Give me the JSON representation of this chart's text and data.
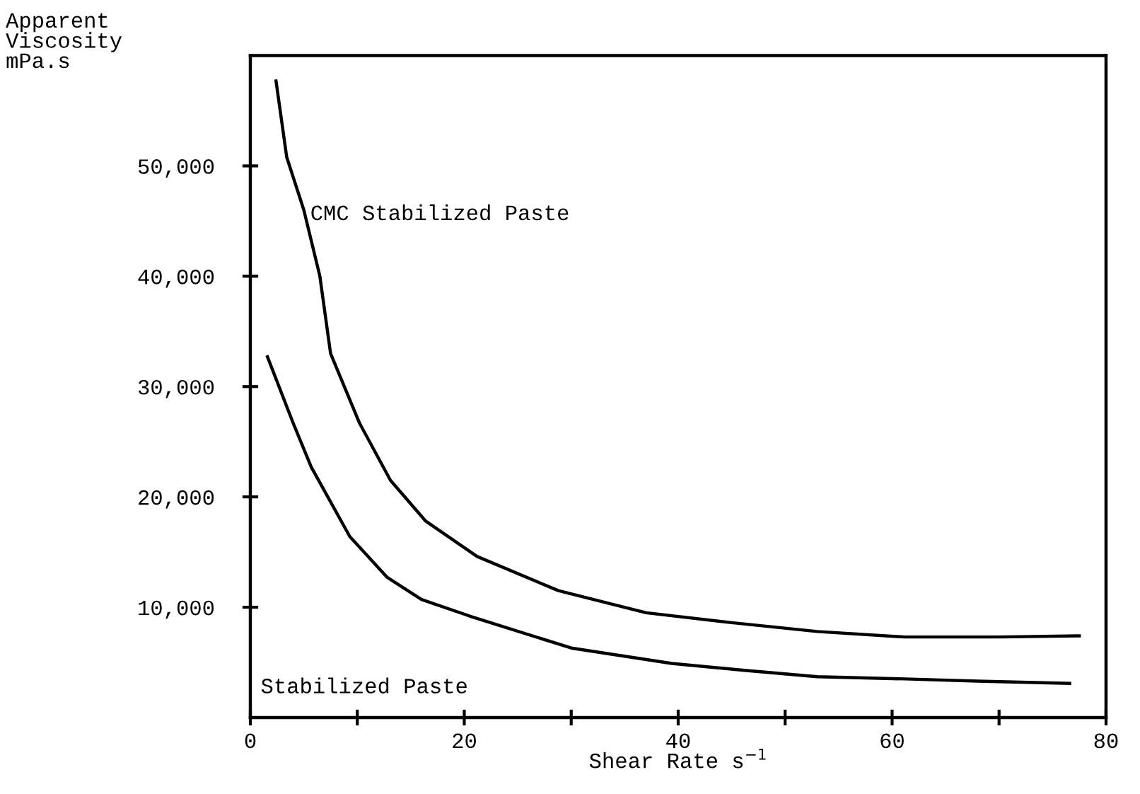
{
  "chart_data": {
    "type": "line",
    "ylabel": "Apparent\nViscosity\nmPa.s",
    "xlabel": "Shear Rate s$^{−1}$",
    "xlim": [
      0,
      80
    ],
    "xticks": [
      0,
      {
        "value": 10,
        "label": null
      },
      20,
      {
        "value": 30,
        "label": null
      },
      40,
      {
        "value": 50,
        "label": null
      },
      60,
      {
        "value": 70,
        "label": null
      },
      80
    ],
    "ylim": [
      0,
      60000
    ],
    "yticks": [
      {
        "value": 10000,
        "label": "10,000"
      },
      {
        "value": 20000,
        "label": "20,000"
      },
      {
        "value": 30000,
        "label": "30,000"
      },
      {
        "value": 40000,
        "label": "40,000"
      },
      {
        "value": 50000,
        "label": "50,000"
      }
    ],
    "grid": false,
    "legend": false,
    "marker": "none",
    "line_style": "solid",
    "series": [
      {
        "name": "CMC Stabilized Paste",
        "color": "#000000",
        "x": [
          2.4,
          3.4,
          5,
          6.5,
          7.5,
          10.2,
          13.1,
          16.4,
          21.2,
          28.8,
          37,
          45,
          53,
          61.2,
          70,
          77.5
        ],
        "values": [
          57700,
          50800,
          46000,
          40000,
          33000,
          26700,
          21500,
          17800,
          14600,
          11500,
          9500,
          8600,
          7800,
          7300,
          7300,
          7400
        ]
      },
      {
        "name": "Stabilized Paste",
        "color": "#000000",
        "x": [
          1.6,
          4,
          5.7,
          9.3,
          12.8,
          16,
          20.5,
          30,
          39.4,
          46,
          53,
          61.2,
          68,
          76.6
        ],
        "values": [
          32700,
          26700,
          22700,
          16400,
          12700,
          10700,
          9200,
          6300,
          4900,
          4300,
          3700,
          3500,
          3300,
          3100
        ]
      }
    ]
  }
}
